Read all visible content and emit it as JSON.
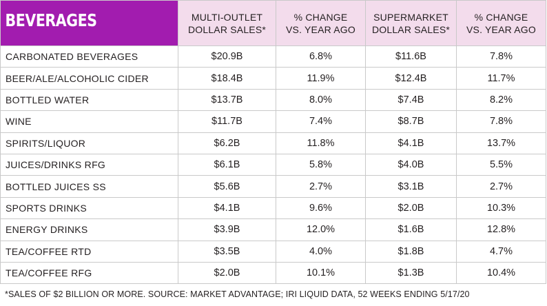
{
  "table": {
    "title": "BEVERAGES",
    "columns": [
      [
        "MULTI-OUTLET",
        "DOLLAR SALES*"
      ],
      [
        "% CHANGE",
        "VS. YEAR AGO"
      ],
      [
        "SUPERMARKET",
        "DOLLAR SALES*"
      ],
      [
        "% CHANGE",
        "VS. YEAR AGO"
      ]
    ],
    "rows": [
      [
        "CARBONATED BEVERAGES",
        "$20.9B",
        "6.8%",
        "$11.6B",
        "7.8%"
      ],
      [
        "BEER/ALE/ALCOHOLIC CIDER",
        "$18.4B",
        "11.9%",
        "$12.4B",
        "11.7%"
      ],
      [
        "BOTTLED WATER",
        "$13.7B",
        "8.0%",
        "$7.4B",
        "8.2%"
      ],
      [
        "WINE",
        "$11.7B",
        "7.4%",
        "$8.7B",
        "7.8%"
      ],
      [
        "SPIRITS/LIQUOR",
        "$6.2B",
        "11.8%",
        "$4.1B",
        "13.7%"
      ],
      [
        "JUICES/DRINKS RFG",
        "$6.1B",
        "5.8%",
        "$4.0B",
        "5.5%"
      ],
      [
        "BOTTLED JUICES SS",
        "$5.6B",
        "2.7%",
        "$3.1B",
        "2.7%"
      ],
      [
        "SPORTS DRINKS",
        "$4.1B",
        "9.6%",
        "$2.0B",
        "10.3%"
      ],
      [
        "ENERGY DRINKS",
        "$3.9B",
        "12.0%",
        "$1.6B",
        "12.8%"
      ],
      [
        "TEA/COFFEE RTD",
        "$3.5B",
        "4.0%",
        "$1.8B",
        "4.7%"
      ],
      [
        "TEA/COFFEE RFG",
        "$2.0B",
        "10.1%",
        "$1.3B",
        "10.4%"
      ]
    ]
  },
  "footnote": "*SALES OF $2 BILLION OR MORE.   SOURCE: MARKET ADVANTAGE; IRI LIQUID DATA, 52 WEEKS ENDING 5/17/20",
  "colors": {
    "title_background": "#a21caf",
    "title_text": "#ffffff",
    "header_background": "#f3dcec",
    "grid_lines": "#c9c9c9",
    "text": "#231f20"
  }
}
